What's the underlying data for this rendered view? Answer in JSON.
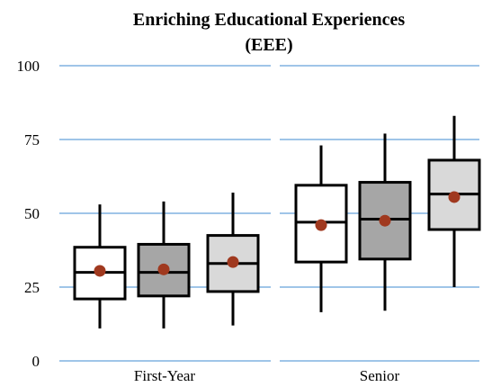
{
  "chart_data": {
    "type": "boxplot",
    "title": [
      "Enriching Educational Experiences",
      "(EEE)"
    ],
    "ylim": [
      0,
      100
    ],
    "yticks": [
      0,
      25,
      50,
      75,
      100
    ],
    "grid": true,
    "categories": [
      "First-Year",
      "Senior"
    ],
    "box_colors": [
      "#ffffff",
      "#a6a6a6",
      "#d9d9d9"
    ],
    "mean_color": "#a0391f",
    "groups": [
      {
        "category": "First-Year",
        "boxes": [
          {
            "min": 11,
            "q1": 21,
            "median": 30,
            "q3": 38.5,
            "max": 53,
            "mean": 30.5
          },
          {
            "min": 11,
            "q1": 22,
            "median": 30,
            "q3": 39.5,
            "max": 54,
            "mean": 31
          },
          {
            "min": 12,
            "q1": 23.5,
            "median": 33,
            "q3": 42.5,
            "max": 57,
            "mean": 33.5
          }
        ]
      },
      {
        "category": "Senior",
        "boxes": [
          {
            "min": 16.5,
            "q1": 33.5,
            "median": 47,
            "q3": 59.5,
            "max": 73,
            "mean": 46
          },
          {
            "min": 17,
            "q1": 34.5,
            "median": 48,
            "q3": 60.5,
            "max": 77,
            "mean": 47.5
          },
          {
            "min": 25,
            "q1": 44.5,
            "median": 56.5,
            "q3": 68,
            "max": 83,
            "mean": 55.5
          }
        ]
      }
    ]
  }
}
